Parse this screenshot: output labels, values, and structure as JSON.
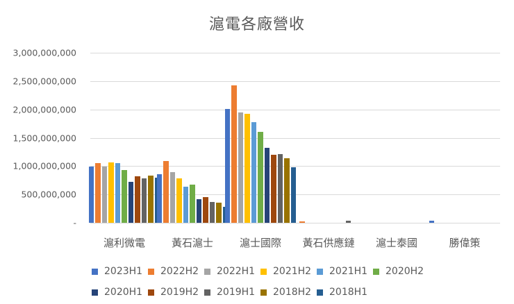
{
  "chart_data": {
    "type": "bar",
    "title": "滬電各廠營收",
    "xlabel": "",
    "ylabel": "",
    "ylim": [
      0,
      3000000000
    ],
    "yticks": [
      0,
      500000000,
      1000000000,
      1500000000,
      2000000000,
      2500000000,
      3000000000
    ],
    "ytick_labels": [
      "-",
      "500,000,000",
      "1,000,000,000",
      "1,500,000,000",
      "2,000,000,000",
      "2,500,000,000",
      "3,000,000,000"
    ],
    "grid": true,
    "legend_position": "bottom",
    "categories": [
      "滬利微電",
      "黃石滬士",
      "滬士國際",
      "黃石供應鏈",
      "滬士泰國",
      "勝偉策"
    ],
    "series": [
      {
        "name": "2023H1",
        "color": "#4472C4",
        "values": [
          990000000,
          860000000,
          2010000000,
          0,
          0,
          40000000
        ]
      },
      {
        "name": "2022H2",
        "color": "#ED7D31",
        "values": [
          1050000000,
          1090000000,
          2420000000,
          20000000,
          0,
          0
        ]
      },
      {
        "name": "2022H1",
        "color": "#A5A5A5",
        "values": [
          990000000,
          890000000,
          1950000000,
          0,
          0,
          0
        ]
      },
      {
        "name": "2021H2",
        "color": "#FFC000",
        "values": [
          1070000000,
          780000000,
          1920000000,
          0,
          0,
          0
        ]
      },
      {
        "name": "2021H1",
        "color": "#5B9BD5",
        "values": [
          1050000000,
          640000000,
          1780000000,
          0,
          0,
          0
        ]
      },
      {
        "name": "2020H2",
        "color": "#70AD47",
        "values": [
          930000000,
          670000000,
          1600000000,
          0,
          0,
          0
        ]
      },
      {
        "name": "2020H1",
        "color": "#264478",
        "values": [
          720000000,
          420000000,
          1320000000,
          0,
          0,
          0
        ]
      },
      {
        "name": "2019H2",
        "color": "#9E480E",
        "values": [
          820000000,
          450000000,
          1200000000,
          0,
          0,
          0
        ]
      },
      {
        "name": "2019H1",
        "color": "#636363",
        "values": [
          780000000,
          370000000,
          1210000000,
          40000000,
          0,
          0
        ]
      },
      {
        "name": "2018H2",
        "color": "#997300",
        "values": [
          830000000,
          350000000,
          1140000000,
          0,
          0,
          0
        ]
      },
      {
        "name": "2018H1",
        "color": "#255E91",
        "values": [
          800000000,
          280000000,
          980000000,
          0,
          0,
          0
        ]
      }
    ]
  }
}
